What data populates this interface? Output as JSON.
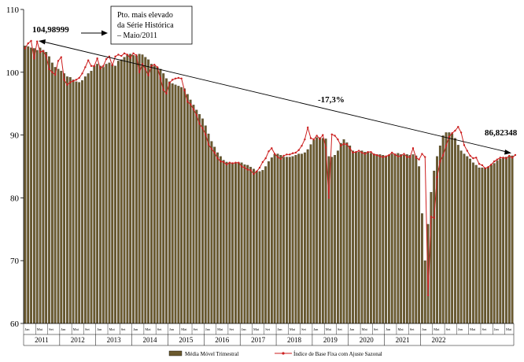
{
  "chart_data": {
    "type": "bar+line",
    "title": "",
    "ylim": [
      60,
      110
    ],
    "yticks": [
      60,
      70,
      80,
      90,
      100,
      110
    ],
    "month_labels": [
      "Jan",
      "Mai",
      "Set"
    ],
    "years": [
      "2011",
      "2012",
      "2013",
      "2014",
      "2015",
      "2016",
      "2017",
      "2018",
      "2019",
      "2020",
      "2021",
      "2022"
    ],
    "series": [
      {
        "name": "Média Móvel Trimestral",
        "kind": "bar",
        "color": "#6b5a2e",
        "values": [
          104.2,
          104.1,
          103.9,
          103.8,
          103.5,
          103.9,
          103.5,
          103.2,
          102.5,
          101.5,
          100.8,
          100.5,
          100.2,
          99.8,
          99.3,
          99.2,
          98.8,
          98.5,
          98.4,
          98.7,
          99.3,
          99.8,
          100.2,
          101.0,
          101.3,
          101.0,
          100.8,
          101.3,
          101.5,
          101.2,
          101.0,
          101.8,
          102.0,
          102.4,
          102.8,
          102.9,
          102.7,
          102.6,
          102.9,
          102.8,
          102.4,
          102.0,
          101.3,
          101.0,
          100.8,
          100.5,
          99.8,
          99.0,
          98.5,
          98.2,
          98.0,
          97.8,
          97.6,
          97.4,
          96.5,
          95.6,
          94.8,
          94.0,
          93.3,
          92.6,
          91.5,
          90.2,
          89.0,
          88.1,
          87.2,
          86.6,
          86.0,
          85.7,
          85.6,
          85.5,
          85.5,
          85.6,
          85.6,
          85.3,
          85.2,
          84.9,
          84.6,
          84.3,
          84.2,
          84.4,
          85.0,
          85.8,
          86.4,
          86.9,
          87.0,
          86.8,
          86.5,
          86.5,
          86.5,
          86.6,
          86.8,
          87.0,
          87.0,
          87.2,
          87.7,
          88.5,
          89.2,
          89.6,
          89.6,
          89.5,
          89.4,
          86.6,
          86.5,
          86.8,
          87.5,
          88.7,
          89.3,
          88.8,
          88.3,
          87.5,
          87.3,
          87.3,
          87.5,
          87.3,
          87.2,
          87.1,
          87.0,
          86.9,
          86.9,
          86.8,
          86.6,
          86.8,
          87.0,
          87.0,
          87.1,
          86.9,
          86.8,
          86.9,
          86.8,
          86.9,
          86.7,
          85.0,
          77.5,
          70.0,
          75.8,
          80.9,
          84.3,
          86.6,
          88.3,
          89.9,
          90.4,
          90.4,
          90.2,
          89.5,
          88.4,
          87.5,
          87.0,
          86.6,
          86.2,
          85.6,
          85.2,
          84.8,
          84.8,
          84.8,
          84.9,
          85.2,
          85.5,
          85.9,
          86.2,
          86.4,
          86.5,
          86.6,
          86.7
        ]
      },
      {
        "name": "Índice de Base Fixa com Ajuste Sazonal",
        "kind": "line",
        "color": "#cc1f1f",
        "values": [
          103.8,
          104.6,
          104.99,
          102.2,
          104.9,
          103.2,
          103.4,
          102.6,
          100.5,
          100.0,
          99.6,
          101.8,
          102.4,
          98.8,
          98.0,
          98.4,
          98.6,
          98.8,
          99.1,
          99.8,
          100.8,
          101.9,
          101.0,
          101.0,
          102.2,
          100.6,
          101.0,
          102.1,
          102.5,
          101.1,
          102.5,
          102.8,
          102.6,
          103.0,
          102.8,
          102.3,
          103.0,
          102.7,
          100.0,
          101.3,
          100.5,
          99.5,
          101.0,
          101.2,
          100.8,
          99.0,
          97.2,
          96.6,
          98.3,
          98.8,
          99.0,
          99.1,
          99.0,
          97.1,
          95.3,
          94.9,
          94.1,
          93.2,
          91.8,
          91.1,
          90.1,
          88.5,
          87.8,
          87.2,
          86.3,
          85.8,
          85.7,
          85.3,
          85.6,
          85.5,
          85.6,
          85.6,
          85.0,
          84.8,
          84.5,
          84.4,
          83.8,
          84.2,
          84.8,
          85.7,
          86.3,
          87.4,
          87.9,
          87.0,
          86.5,
          86.2,
          86.7,
          86.9,
          86.9,
          87.1,
          87.2,
          87.6,
          88.3,
          89.3,
          91.2,
          89.5,
          89.3,
          89.9,
          89.4,
          90.0,
          88.0,
          80.0,
          90.1,
          89.9,
          89.3,
          88.3,
          88.6,
          88.5,
          87.9,
          87.2,
          87.3,
          87.5,
          87.2,
          87.0,
          87.3,
          87.3,
          86.9,
          86.8,
          86.6,
          86.5,
          86.6,
          86.8,
          87.2,
          86.9,
          86.6,
          86.7,
          87.0,
          86.5,
          86.5,
          87.9,
          86.4,
          86.1,
          87.0,
          86.5,
          64.5,
          77.0,
          76.8,
          83.3,
          85.8,
          86.8,
          88.3,
          89.7,
          90.3,
          90.7,
          91.3,
          90.4,
          88.4,
          87.5,
          86.7,
          86.3,
          86.4,
          85.4,
          85.2,
          84.7,
          84.9,
          85.3,
          85.8,
          86.1,
          86.4,
          86.4,
          86.3,
          86.7,
          86.4,
          86.82348
        ]
      }
    ],
    "annotations": {
      "peak_label": "104,98999",
      "peak_box": [
        "Pto. mais elevado",
        "da Série Histórica",
        "– Maio/2011"
      ],
      "change_label": "-17,3%",
      "last_label": "86,82348"
    },
    "legend": [
      "Média Móvel Trimestral",
      "Índice de Base Fixa com Ajuste Sazonal"
    ]
  }
}
